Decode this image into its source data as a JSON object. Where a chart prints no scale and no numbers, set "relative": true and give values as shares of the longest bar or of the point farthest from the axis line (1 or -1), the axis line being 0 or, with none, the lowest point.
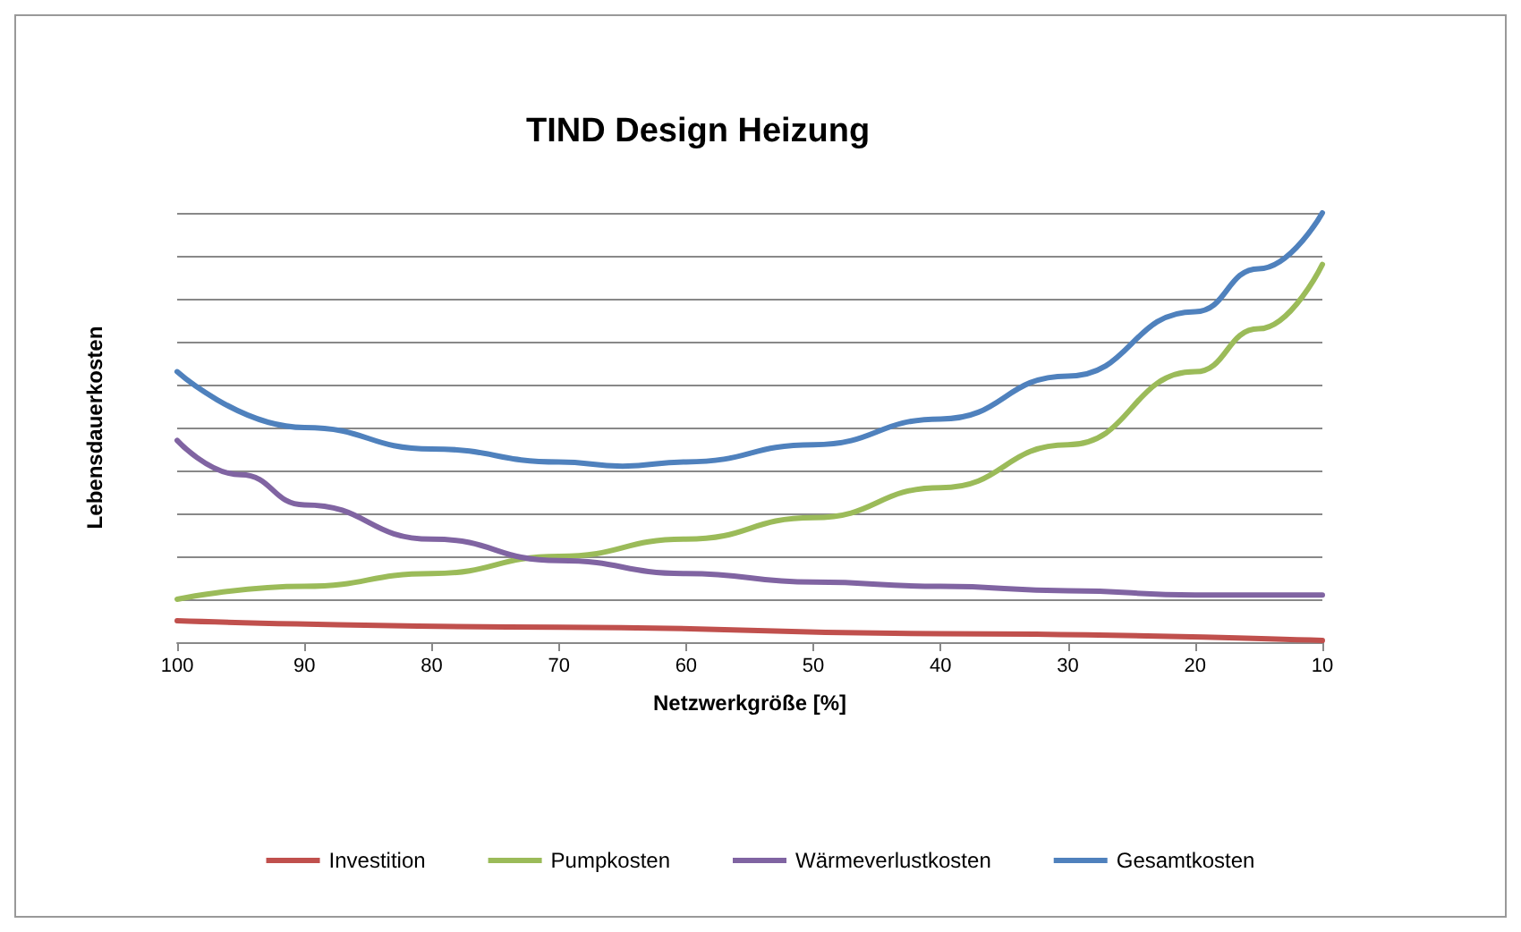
{
  "chart_data": {
    "type": "line",
    "title": "TIND Design Heizung",
    "xlabel": "Netzwerkgröße [%]",
    "ylabel": "Lebensdauerkosten",
    "relative": true,
    "xlim": [
      100,
      10
    ],
    "xticks": [
      100,
      90,
      80,
      70,
      60,
      50,
      40,
      30,
      20,
      10
    ],
    "grid": "y",
    "legend": "bottom",
    "marker": "none",
    "line_style": "solid",
    "series": [
      {
        "name": "Investition",
        "color": "#c0504d",
        "x": [
          100,
          70,
          40,
          10
        ],
        "values": [
          0.05,
          0.035,
          0.02,
          0.004
        ]
      },
      {
        "name": "Pumpkosten",
        "color": "#9bbb59",
        "x": [
          100,
          90,
          80,
          70,
          60,
          50,
          40,
          30,
          20,
          15,
          10
        ],
        "values": [
          0.1,
          0.13,
          0.16,
          0.2,
          0.24,
          0.29,
          0.36,
          0.46,
          0.63,
          0.73,
          0.88
        ]
      },
      {
        "name": "Wärmeverlustkosten",
        "color": "#8064a2",
        "x": [
          100,
          95,
          90,
          80,
          70,
          60,
          50,
          40,
          30,
          20,
          10
        ],
        "values": [
          0.47,
          0.39,
          0.32,
          0.24,
          0.19,
          0.16,
          0.14,
          0.13,
          0.12,
          0.11,
          0.11
        ]
      },
      {
        "name": "Gesamtkosten",
        "color": "#4f81bd",
        "x": [
          100,
          90,
          80,
          70,
          65,
          60,
          50,
          40,
          30,
          20,
          15,
          10
        ],
        "values": [
          0.63,
          0.5,
          0.45,
          0.42,
          0.41,
          0.42,
          0.46,
          0.52,
          0.62,
          0.77,
          0.87,
          1
        ]
      }
    ]
  }
}
